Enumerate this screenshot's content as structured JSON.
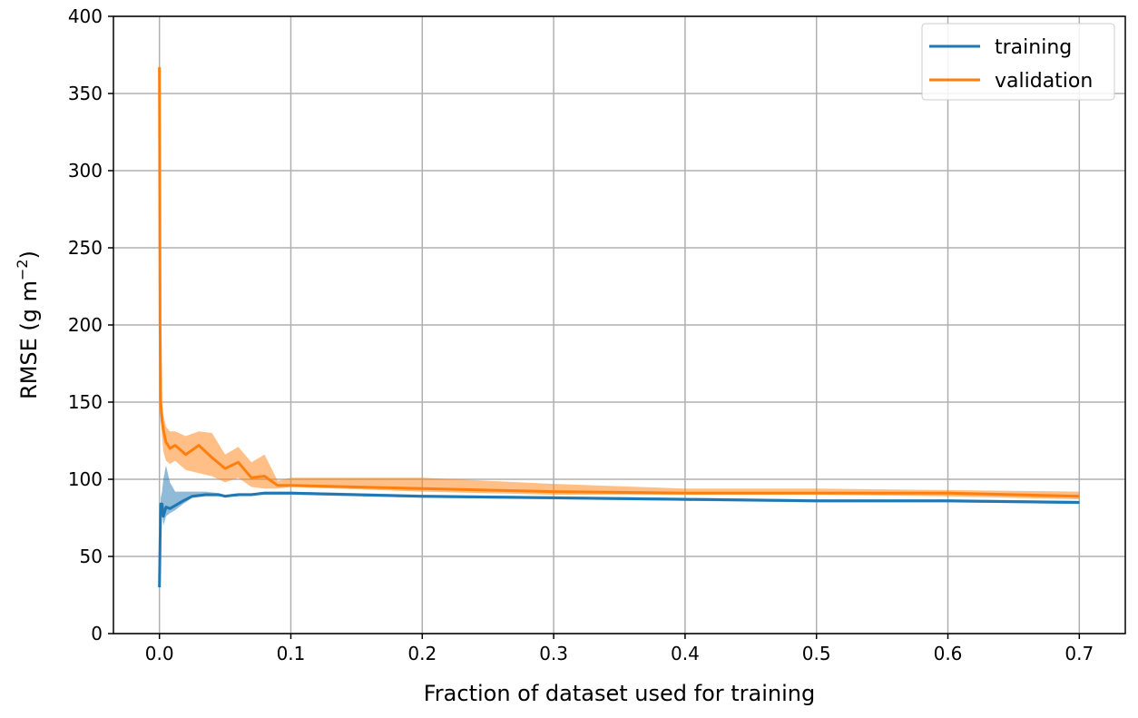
{
  "chart_data": {
    "type": "line",
    "xlabel": "Fraction of dataset used for training",
    "ylabel_main": "RMSE (g m",
    "ylabel_sup": "−2",
    "ylabel_close": ")",
    "xlim": [
      -0.035,
      0.735
    ],
    "ylim": [
      0,
      400
    ],
    "xticks": [
      0.0,
      0.1,
      0.2,
      0.3,
      0.4,
      0.5,
      0.6,
      0.7
    ],
    "xtick_labels": [
      "0.0",
      "0.1",
      "0.2",
      "0.3",
      "0.4",
      "0.5",
      "0.6",
      "0.7"
    ],
    "yticks": [
      0,
      50,
      100,
      150,
      200,
      250,
      300,
      350,
      400
    ],
    "ytick_labels": [
      "0",
      "50",
      "100",
      "150",
      "200",
      "250",
      "300",
      "350",
      "400"
    ],
    "grid": true,
    "legend_position": "top-right",
    "series": [
      {
        "name": "training",
        "color": "#1f77b4",
        "x": [
          0.0,
          0.0005,
          0.001,
          0.002,
          0.003,
          0.005,
          0.008,
          0.012,
          0.018,
          0.025,
          0.035,
          0.045,
          0.05,
          0.06,
          0.07,
          0.08,
          0.09,
          0.1,
          0.2,
          0.3,
          0.4,
          0.5,
          0.6,
          0.7
        ],
        "y": [
          30,
          60,
          84,
          84,
          76,
          82,
          81,
          83,
          86,
          89,
          90,
          90,
          89,
          90,
          90,
          91,
          91,
          91,
          89,
          88,
          87,
          86,
          86,
          85
        ],
        "lower": [
          30,
          45,
          80,
          78,
          70,
          76,
          78,
          80,
          84,
          88,
          89,
          89,
          89,
          89,
          90,
          90,
          90,
          90,
          88,
          87,
          86,
          85,
          85,
          84
        ],
        "upper": [
          30,
          75,
          88,
          92,
          100,
          109,
          98,
          92,
          92,
          92,
          92,
          91,
          90,
          91,
          91,
          92,
          92,
          92,
          90,
          89,
          88,
          87,
          87,
          86
        ]
      },
      {
        "name": "validation",
        "color": "#ff7f0e",
        "x": [
          0.0,
          0.0005,
          0.001,
          0.002,
          0.003,
          0.005,
          0.008,
          0.012,
          0.02,
          0.03,
          0.04,
          0.05,
          0.06,
          0.07,
          0.08,
          0.09,
          0.1,
          0.2,
          0.3,
          0.4,
          0.5,
          0.6,
          0.7
        ],
        "y": [
          367,
          200,
          150,
          138,
          132,
          124,
          120,
          122,
          116,
          122,
          114,
          107,
          111,
          101,
          102,
          96,
          96,
          94,
          92,
          91,
          91,
          91,
          89
        ],
        "lower": [
          367,
          190,
          140,
          128,
          118,
          112,
          110,
          112,
          106,
          104,
          102,
          98,
          101,
          95,
          94,
          94,
          95,
          92,
          90,
          90,
          90,
          89,
          87
        ],
        "upper": [
          367,
          210,
          160,
          148,
          142,
          134,
          131,
          131,
          128,
          131,
          130,
          116,
          121,
          111,
          116,
          99,
          101,
          101,
          97,
          94,
          94,
          93,
          92
        ]
      }
    ]
  }
}
